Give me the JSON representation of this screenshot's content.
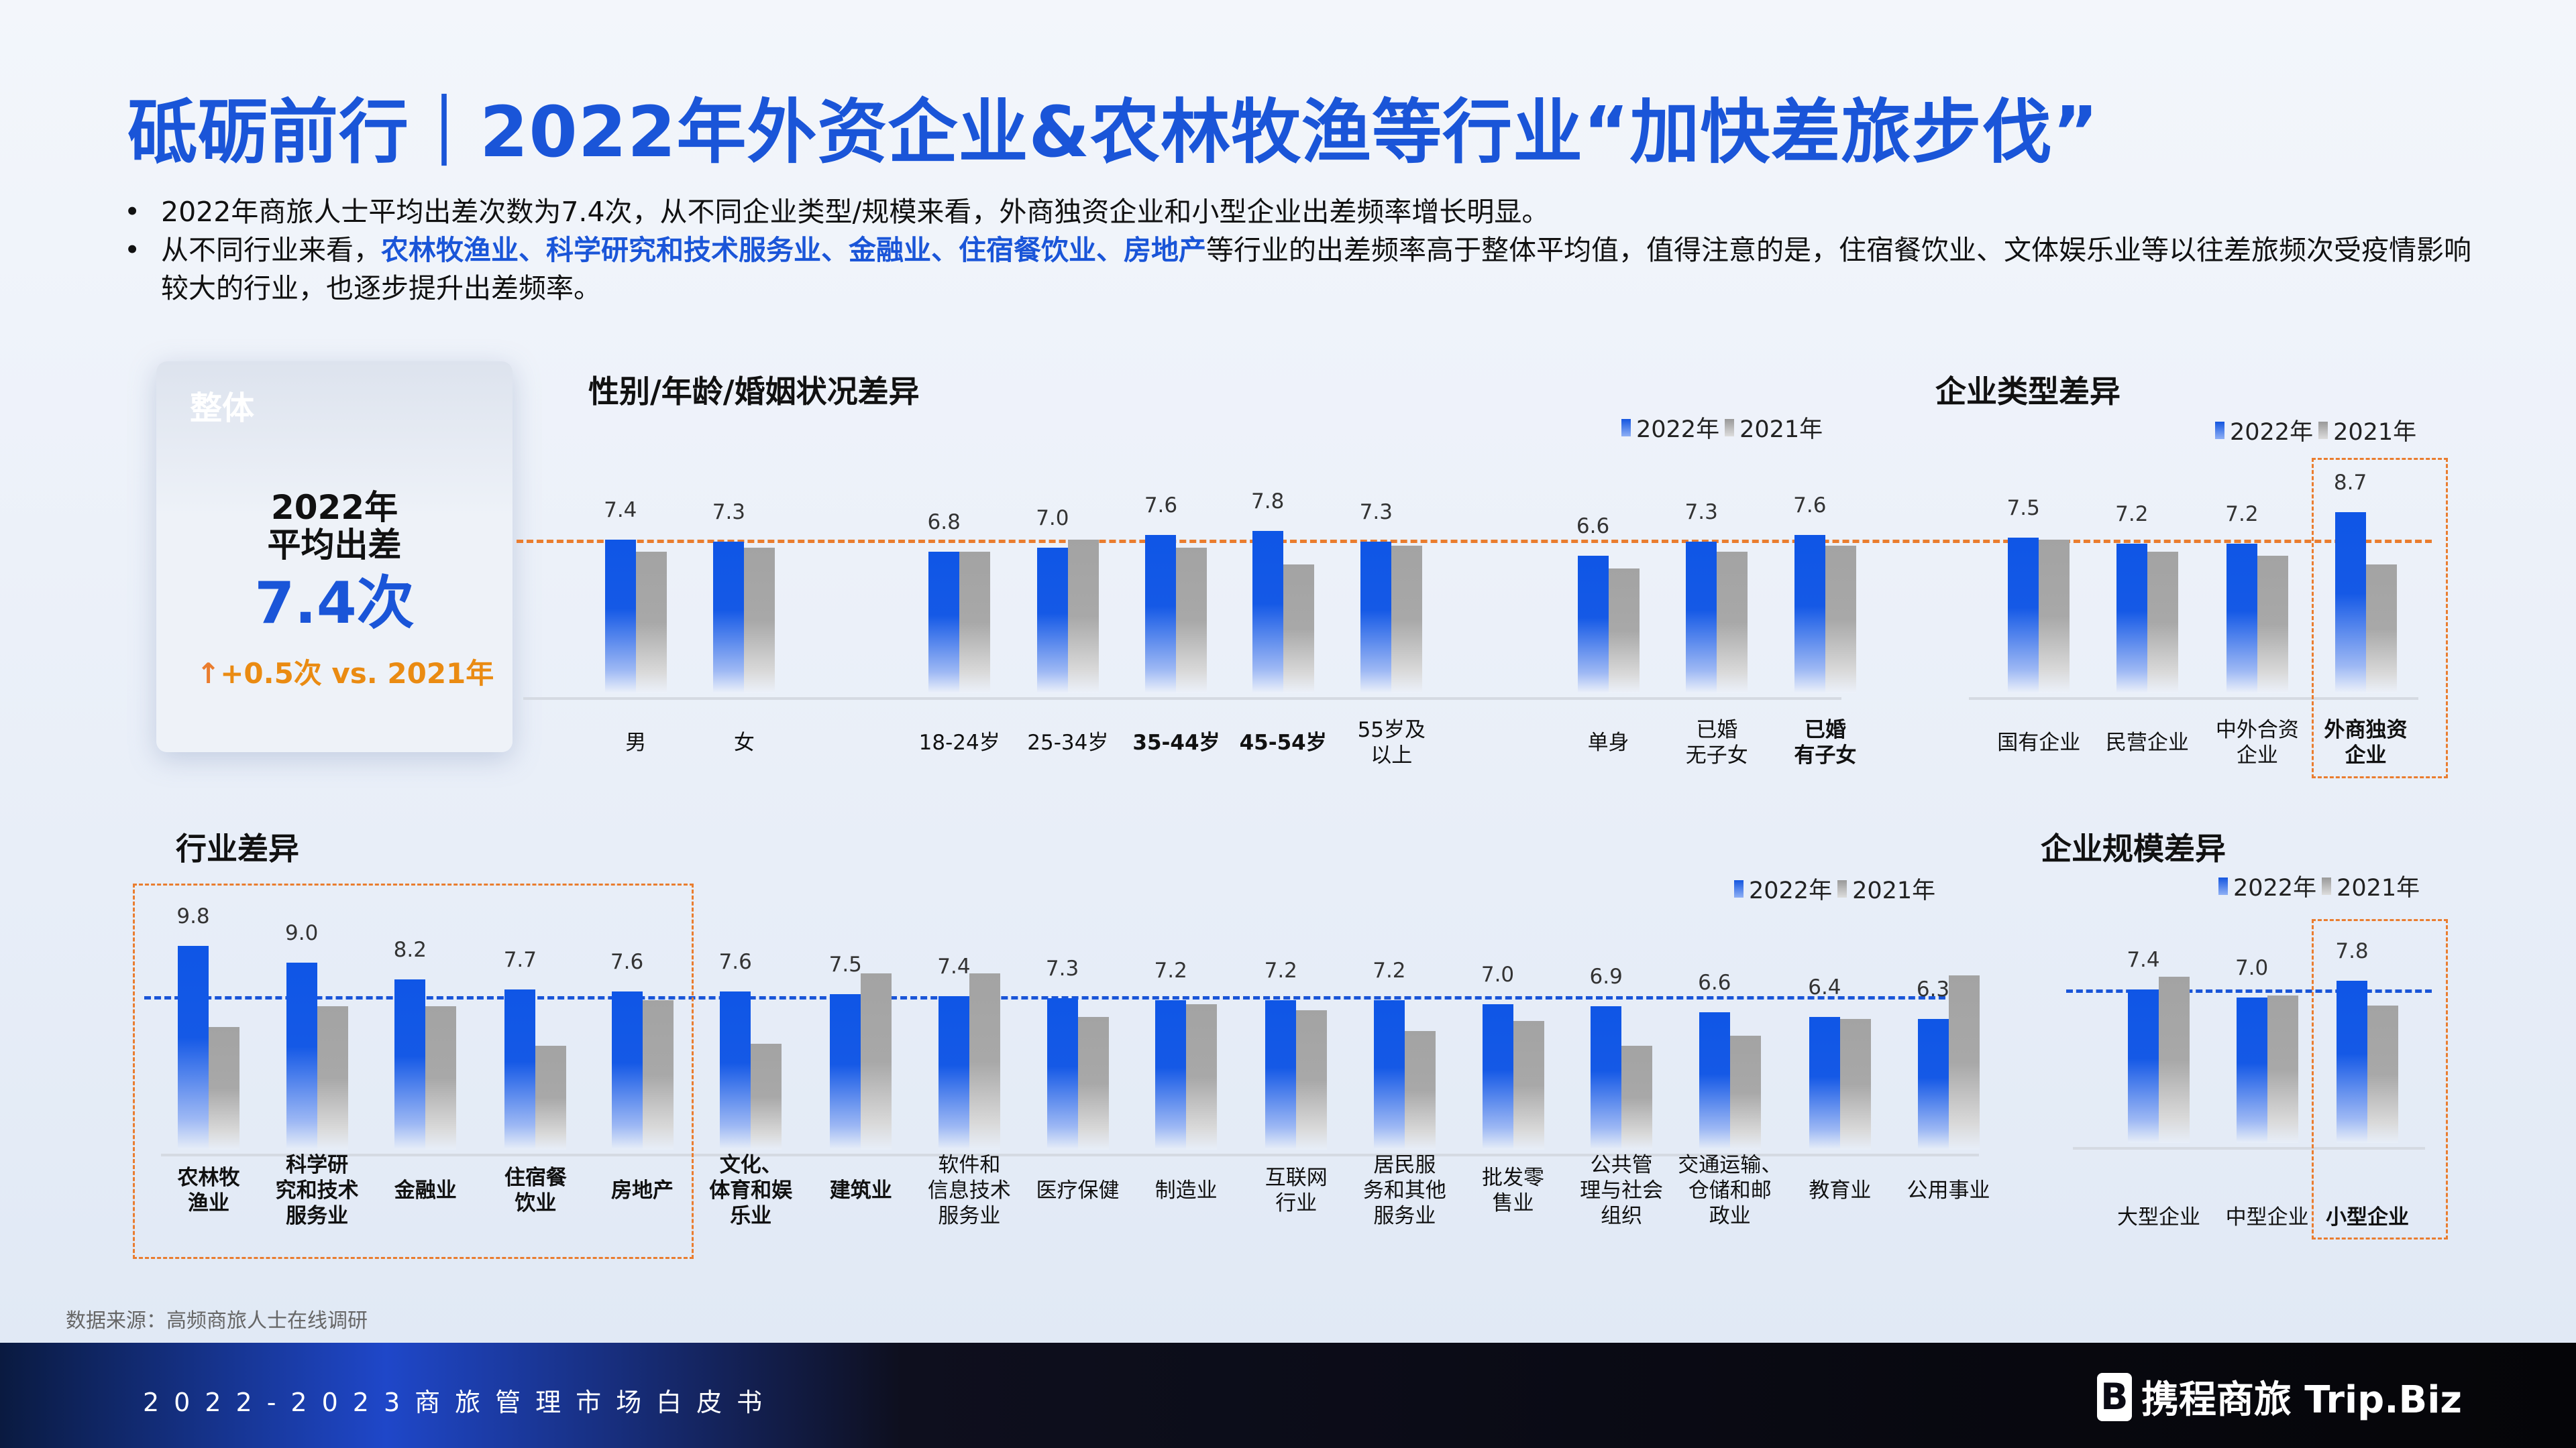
{
  "title": "砥砺前行｜2022年外资企业&农林牧渔等行业“加快差旅步伐”",
  "bullets": {
    "b1": "2022年商旅人士平均出差次数为7.4次，从不同企业类型/规模来看，外商独资企业和小型企业出差频率增长明显。",
    "b2_prefix": "从不同行业来看，",
    "b2_highlight": "农林牧渔业、科学研究和技术服务业、金融业、住宿餐饮业、房地产",
    "b2_suffix": "等行业的出差频率高于整体平均值，值得注意的是，住宿餐饮业、文体娱乐业等以往差旅频次受疫情影响较大的行业，也逐步提升出差频率。"
  },
  "card": {
    "title": "整体",
    "line1": "2022年",
    "line2": "平均出差",
    "value": "7.4次",
    "delta": "+0.5次 vs. 2021年"
  },
  "colors": {
    "y2022": "#1456e0",
    "y2021": "#a6a6a6",
    "title": "#1a55d8",
    "highlight": "#ea7d2f",
    "avg_top": "#ea7d2f",
    "avg_bottom": "#1a55d8"
  },
  "legend": {
    "y2022": "2022年",
    "y2021": "2021年"
  },
  "chart_data": [
    {
      "type": "bar",
      "title": "性别/年龄/婚姻状况差异",
      "categories": [
        "男",
        "女",
        "18-24岁",
        "25-34岁",
        "35-44岁",
        "45-54岁",
        "55岁及\n以上",
        "单身",
        "已婚\n无子女",
        "已婚\n有子女"
      ],
      "series": [
        {
          "name": "2022年",
          "values": [
            7.4,
            7.3,
            6.8,
            7.0,
            7.6,
            7.8,
            7.3,
            6.6,
            7.3,
            7.6
          ]
        },
        {
          "name": "2021年",
          "values": [
            6.8,
            7.0,
            6.8,
            7.4,
            7.0,
            6.2,
            7.1,
            6.0,
            6.8,
            7.1
          ]
        }
      ],
      "reference_line": 7.4,
      "labels": [
        "7.4",
        "7.3",
        "6.8",
        "7.0",
        "7.6",
        "7.8",
        "7.3",
        "6.6",
        "7.3",
        "7.6"
      ]
    },
    {
      "type": "bar",
      "title": "企业类型差异",
      "categories": [
        "国有企业",
        "民营企业",
        "中外合资\n企业",
        "外商独资\n企业"
      ],
      "series": [
        {
          "name": "2022年",
          "values": [
            7.5,
            7.2,
            7.2,
            8.7
          ]
        },
        {
          "name": "2021年",
          "values": [
            7.4,
            6.8,
            6.6,
            6.2
          ]
        }
      ],
      "reference_line": 7.4,
      "highlighted": [
        "外商独资\n企业"
      ],
      "labels": [
        "7.5",
        "7.2",
        "7.2",
        "8.7"
      ]
    },
    {
      "type": "bar",
      "title": "行业差异",
      "categories": [
        "农林牧\n渔业",
        "科学研\n究和技术\n服务业",
        "金融业",
        "住宿餐\n饮业",
        "房地产",
        "文化、\n体育和娱\n乐业",
        "建筑业",
        "软件和\n信息技术\n服务业",
        "医疗保健",
        "制造业",
        "互联网\n行业",
        "居民服\n务和其他\n服务业",
        "批发零\n售业",
        "公共管\n理与社会\n组织",
        "交通运输、\n仓储和邮\n政业",
        "教育业",
        "公用事业"
      ],
      "series": [
        {
          "name": "2022年",
          "values": [
            9.8,
            9.0,
            8.2,
            7.7,
            7.6,
            7.6,
            7.5,
            7.4,
            7.3,
            7.2,
            7.2,
            7.2,
            7.0,
            6.9,
            6.6,
            6.4,
            6.3
          ]
        },
        {
          "name": "2021年",
          "values": [
            5.9,
            6.9,
            6.9,
            5.0,
            7.2,
            5.1,
            8.5,
            8.5,
            6.4,
            7.0,
            6.7,
            5.7,
            6.2,
            5.0,
            5.5,
            6.3,
            8.4
          ]
        }
      ],
      "reference_line": 7.4,
      "highlighted": [
        "农林牧\n渔业",
        "科学研\n究和技术\n服务业",
        "金融业",
        "住宿餐\n饮业",
        "房地产"
      ],
      "labels": [
        "9.8",
        "9.0",
        "8.2",
        "7.7",
        "7.6",
        "7.6",
        "7.5",
        "7.4",
        "7.3",
        "7.2",
        "7.2",
        "7.2",
        "7.0",
        "6.9",
        "6.6",
        "6.4",
        "6.3"
      ]
    },
    {
      "type": "bar",
      "title": "企业规模差异",
      "categories": [
        "大型企业",
        "中型企业",
        "小型企业"
      ],
      "series": [
        {
          "name": "2022年",
          "values": [
            7.4,
            7.0,
            7.8
          ]
        },
        {
          "name": "2021年",
          "values": [
            8.0,
            7.1,
            6.6
          ]
        }
      ],
      "reference_line": 7.4,
      "highlighted": [
        "小型企业"
      ],
      "labels": [
        "7.4",
        "7.0",
        "7.8"
      ]
    }
  ],
  "source": "数据来源：高频商旅人士在线调研",
  "footer": {
    "text": "2022-2023商旅管理市场白皮书",
    "logo_text": "携程商旅 Trip.Biz",
    "logo_mark": "B"
  }
}
